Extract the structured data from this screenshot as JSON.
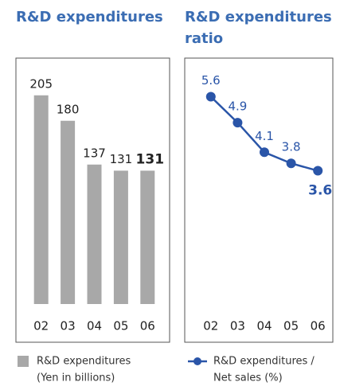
{
  "chart_data": [
    {
      "type": "bar",
      "title": "R&D expenditures",
      "categories": [
        "02",
        "03",
        "04",
        "05",
        "06"
      ],
      "values": [
        205,
        180,
        137,
        131,
        131
      ],
      "color": "#a8a8a8",
      "ylim": [
        0,
        240
      ],
      "legend": [
        "R&D expenditures",
        "(Yen in billions)"
      ]
    },
    {
      "type": "line",
      "title": "R&D expenditures ratio",
      "categories": [
        "02",
        "03",
        "04",
        "05",
        "06"
      ],
      "values": [
        5.6,
        4.9,
        4.1,
        3.8,
        3.6
      ],
      "color": "#2a55a8",
      "ylim": [
        0,
        6.6
      ],
      "legend": [
        "R&D expenditures /",
        "Net sales (%)"
      ]
    }
  ]
}
